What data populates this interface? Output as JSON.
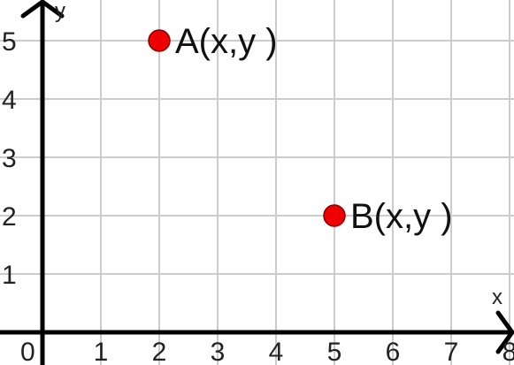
{
  "chart_data": {
    "type": "scatter",
    "xlabel": "x",
    "ylabel": "y",
    "xlim": [
      0,
      8
    ],
    "ylim": [
      0,
      5.5
    ],
    "x_ticks": [
      "1",
      "2",
      "3",
      "4",
      "5",
      "6",
      "7",
      "8"
    ],
    "y_ticks": [
      "1",
      "2",
      "3",
      "4",
      "5"
    ],
    "origin_label": "0",
    "grid": true,
    "points": [
      {
        "label": "A(x,y )",
        "x": 2,
        "y": 5
      },
      {
        "label": "B(x,y )",
        "x": 5,
        "y": 2
      }
    ],
    "colors": {
      "point": "#ee0000",
      "axis": "#000000",
      "grid": "#cccccc"
    }
  }
}
